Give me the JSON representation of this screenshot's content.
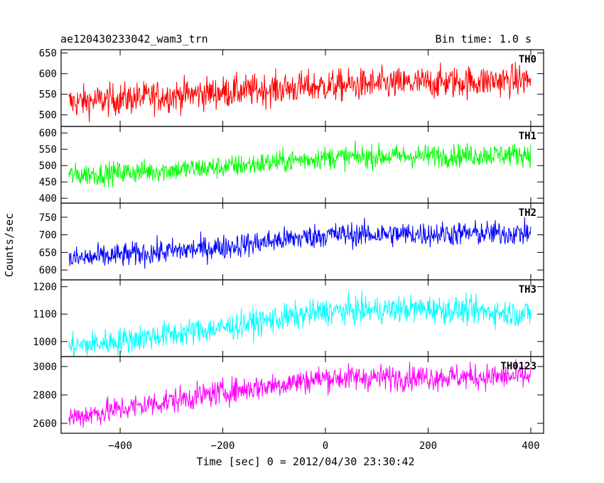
{
  "header": {
    "title": "ae120430233042_wam3_trn",
    "bin_time": "Bin time: 1.0 s"
  },
  "axes": {
    "xlabel": "Time [sec] 0 = 2012/04/30 23:30:42",
    "ylabel": "Counts/sec"
  },
  "chart_data": {
    "type": "line",
    "xlim": [
      -515,
      425
    ],
    "x_ticks": [
      -400,
      -200,
      0,
      200,
      400
    ],
    "x_tick_labels": [
      "−400",
      "−200",
      "0",
      "200",
      "400"
    ],
    "x_range_data": [
      -500,
      400
    ],
    "bin_time_s": 1.0,
    "panels": [
      {
        "name": "TH0",
        "color": "#ff0000",
        "ylim": [
          472,
          658
        ],
        "y_ticks": [
          500,
          550,
          600,
          650
        ],
        "y_tick_labels": [
          "500",
          "550",
          "600",
          "650"
        ],
        "trend": [
          [
            -500,
            530
          ],
          [
            -200,
            555
          ],
          [
            0,
            570
          ],
          [
            400,
            585
          ]
        ],
        "noise": 28
      },
      {
        "name": "TH1",
        "color": "#00ff00",
        "ylim": [
          385,
          620
        ],
        "y_ticks": [
          400,
          450,
          500,
          550,
          600
        ],
        "y_tick_labels": [
          "400",
          "450",
          "500",
          "550",
          "600"
        ],
        "trend": [
          [
            -500,
            470
          ],
          [
            -200,
            495
          ],
          [
            0,
            525
          ],
          [
            400,
            535
          ]
        ],
        "noise": 25
      },
      {
        "name": "TH2",
        "color": "#0000ff",
        "ylim": [
          572,
          790
        ],
        "y_ticks": [
          600,
          650,
          700,
          750
        ],
        "y_tick_labels": [
          "600",
          "650",
          "700",
          "750"
        ],
        "trend": [
          [
            -500,
            630
          ],
          [
            -200,
            665
          ],
          [
            0,
            700
          ],
          [
            400,
            705
          ]
        ],
        "noise": 25
      },
      {
        "name": "TH3",
        "color": "#00ffff",
        "ylim": [
          945,
          1225
        ],
        "y_ticks": [
          1000,
          1100,
          1200
        ],
        "y_tick_labels": [
          "1000",
          "1100",
          "1200"
        ],
        "trend": [
          [
            -500,
            980
          ],
          [
            -200,
            1050
          ],
          [
            0,
            1110
          ],
          [
            200,
            1120
          ],
          [
            400,
            1100
          ]
        ],
        "noise": 35
      },
      {
        "name": "TH0123",
        "color": "#ff00ff",
        "ylim": [
          2530,
          3070
        ],
        "y_ticks": [
          2600,
          2800,
          3000
        ],
        "y_tick_labels": [
          "2600",
          "2800",
          "3000"
        ],
        "trend": [
          [
            -500,
            2640
          ],
          [
            -200,
            2820
          ],
          [
            0,
            2920
          ],
          [
            400,
            2930
          ]
        ],
        "noise": 65
      }
    ]
  }
}
